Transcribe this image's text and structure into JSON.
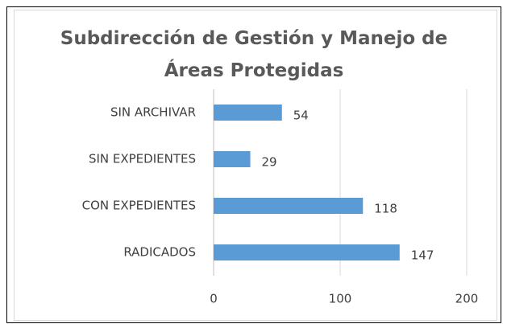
{
  "chart_data": {
    "type": "bar",
    "orientation": "horizontal",
    "title": "Subdirección de Gestión y Manejo de Áreas Protegidas",
    "categories": [
      "SIN ARCHIVAR",
      "SIN EXPEDIENTES",
      "CON EXPEDIENTES",
      "RADICADOS"
    ],
    "values": [
      54,
      29,
      118,
      147
    ],
    "color": "#5b9bd5",
    "xlim": [
      0,
      200
    ],
    "xticks": [
      0,
      100,
      200
    ],
    "grid": true
  }
}
